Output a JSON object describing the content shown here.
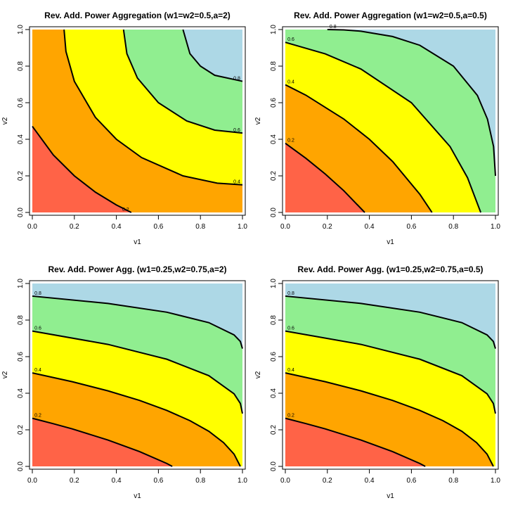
{
  "chart_data": [
    {
      "type": "contour",
      "title": "Rev. Add. Power Aggregation (w1=w2=0.5,a=2)",
      "x_label": "v1",
      "y_label": "v2",
      "xlim": [
        0,
        1
      ],
      "ylim": [
        0,
        1
      ],
      "xticks": [
        {
          "value": 0,
          "label": "0.0"
        },
        0.2,
        0.4,
        0.6,
        0.8,
        {
          "value": 1,
          "label": "1.0"
        }
      ],
      "yticks": [
        {
          "value": 0,
          "label": "0.0"
        },
        0.2,
        0.4,
        0.6,
        0.8,
        {
          "value": 1,
          "label": "1.0"
        }
      ],
      "colors": [
        "#ff6347",
        "#ffa500",
        "#ffff00",
        "#90ee90",
        "#add8e6"
      ],
      "contour_label_position": "end",
      "contours": [
        {
          "level": 0.2,
          "x": [
            0,
            0.1,
            0.2,
            0.3,
            0.4,
            0.471
          ],
          "y": [
            0.471,
            0.314,
            0.2,
            0.111,
            0.041,
            0
          ]
        },
        {
          "level": 0.4,
          "x": [
            0.151,
            0.16,
            0.2,
            0.3,
            0.4,
            0.52,
            0.717,
            0.88,
            1
          ],
          "y": [
            1,
            0.88,
            0.717,
            0.52,
            0.4,
            0.3,
            0.2,
            0.16,
            0.151
          ]
        },
        {
          "level": 0.6,
          "x": [
            0.434,
            0.45,
            0.5,
            0.6,
            0.735,
            0.868,
            1
          ],
          "y": [
            1,
            0.868,
            0.735,
            0.6,
            0.5,
            0.45,
            0.434
          ]
        },
        {
          "level": 0.8,
          "x": [
            0.717,
            0.75,
            0.8,
            0.868,
            1
          ],
          "y": [
            1,
            0.868,
            0.8,
            0.75,
            0.717
          ]
        }
      ]
    },
    {
      "type": "contour",
      "title": "Rev. Add. Power Aggregation (w1=w2=0.5,a=0.5)",
      "x_label": "v1",
      "y_label": "v2",
      "xlim": [
        0,
        1
      ],
      "ylim": [
        0,
        1
      ],
      "xticks": [
        {
          "value": 0,
          "label": "0.0"
        },
        0.2,
        0.4,
        0.6,
        0.8,
        {
          "value": 1,
          "label": "1.0"
        }
      ],
      "yticks": [
        {
          "value": 0,
          "label": "0.0"
        },
        0.2,
        0.4,
        0.6,
        0.8,
        {
          "value": 1,
          "label": "1.0"
        }
      ],
      "colors": [
        "#ff6347",
        "#ffa500",
        "#ffff00",
        "#90ee90",
        "#add8e6"
      ],
      "contour_label_position": "start",
      "contours": [
        {
          "level": 0.2,
          "x": [
            0,
            0.098,
            0.19,
            0.278,
            0.378
          ],
          "y": [
            0.378,
            0.296,
            0.21,
            0.119,
            0
          ]
        },
        {
          "level": 0.4,
          "x": [
            0,
            0.098,
            0.278,
            0.4,
            0.511,
            0.641,
            0.698
          ],
          "y": [
            0.698,
            0.641,
            0.511,
            0.4,
            0.278,
            0.098,
            0
          ]
        },
        {
          "level": 0.6,
          "x": [
            0,
            0.19,
            0.36,
            0.6,
            0.784,
            0.867,
            0.93
          ],
          "y": [
            0.93,
            0.867,
            0.784,
            0.6,
            0.36,
            0.19,
            0
          ]
        },
        {
          "level": 0.8,
          "x": [
            0.2,
            0.278,
            0.36,
            0.51,
            0.64,
            0.8,
            0.914,
            0.962,
            0.991,
            1
          ],
          "y": [
            1,
            0.998,
            0.991,
            0.962,
            0.914,
            0.8,
            0.64,
            0.51,
            0.36,
            0.2
          ]
        }
      ]
    },
    {
      "type": "contour",
      "title": "Rev. Add. Power Agg. (w1=0.25,w2=0.75,a=2)",
      "x_label": "v1",
      "y_label": "v2",
      "xlim": [
        0,
        1
      ],
      "ylim": [
        0,
        1
      ],
      "xticks": [
        {
          "value": 0,
          "label": "0.0"
        },
        0.2,
        0.4,
        0.6,
        0.8,
        {
          "value": 1,
          "label": "1.0"
        }
      ],
      "yticks": [
        {
          "value": 0,
          "label": "0.0"
        },
        0.2,
        0.4,
        0.6,
        0.8,
        {
          "value": 1,
          "label": "1.0"
        }
      ],
      "colors": [
        "#ff6347",
        "#ffa500",
        "#ffff00",
        "#90ee90",
        "#add8e6"
      ],
      "contour_label_position": "start",
      "contours": [
        {
          "level": 0.2,
          "x": [
            0,
            0.098,
            0.19,
            0.36,
            0.51,
            0.64,
            0.666
          ],
          "y": [
            0.263,
            0.234,
            0.205,
            0.144,
            0.081,
            0.016,
            0
          ]
        },
        {
          "level": 0.4,
          "x": [
            0,
            0.19,
            0.36,
            0.51,
            0.64,
            0.75,
            0.84,
            0.91,
            0.96,
            0.99
          ],
          "y": [
            0.511,
            0.463,
            0.413,
            0.361,
            0.306,
            0.25,
            0.192,
            0.13,
            0.067,
            0
          ]
        },
        {
          "level": 0.6,
          "x": [
            0,
            0.36,
            0.64,
            0.84,
            0.96,
            0.99,
            1
          ],
          "y": [
            0.74,
            0.667,
            0.586,
            0.496,
            0.397,
            0.344,
            0.289
          ]
        },
        {
          "level": 0.8,
          "x": [
            0,
            0.36,
            0.64,
            0.84,
            0.96,
            0.99,
            1
          ],
          "y": [
            0.931,
            0.891,
            0.843,
            0.786,
            0.719,
            0.683,
            0.644
          ]
        }
      ]
    },
    {
      "type": "contour",
      "title": "Rev. Add. Power Agg. (w1=0.25,w2=0.75,a=0.5)",
      "x_label": "v1",
      "y_label": "v2",
      "xlim": [
        0,
        1
      ],
      "ylim": [
        0,
        1
      ],
      "xticks": [
        {
          "value": 0,
          "label": "0.0"
        },
        0.2,
        0.4,
        0.6,
        0.8,
        {
          "value": 1,
          "label": "1.0"
        }
      ],
      "yticks": [
        {
          "value": 0,
          "label": "0.0"
        },
        0.2,
        0.4,
        0.6,
        0.8,
        {
          "value": 1,
          "label": "1.0"
        }
      ],
      "colors": [
        "#ff6347",
        "#ffa500",
        "#ffff00",
        "#90ee90",
        "#add8e6"
      ],
      "contour_label_position": "start",
      "contours": [
        {
          "level": 0.2,
          "x": [
            0,
            0.098,
            0.19,
            0.36,
            0.51,
            0.64,
            0.666
          ],
          "y": [
            0.263,
            0.234,
            0.205,
            0.144,
            0.081,
            0.016,
            0
          ]
        },
        {
          "level": 0.4,
          "x": [
            0,
            0.19,
            0.36,
            0.51,
            0.64,
            0.75,
            0.84,
            0.91,
            0.96,
            0.99
          ],
          "y": [
            0.511,
            0.463,
            0.413,
            0.361,
            0.306,
            0.25,
            0.192,
            0.13,
            0.067,
            0
          ]
        },
        {
          "level": 0.6,
          "x": [
            0,
            0.36,
            0.64,
            0.84,
            0.96,
            0.99,
            1
          ],
          "y": [
            0.74,
            0.667,
            0.586,
            0.496,
            0.397,
            0.344,
            0.289
          ]
        },
        {
          "level": 0.8,
          "x": [
            0,
            0.36,
            0.64,
            0.84,
            0.96,
            0.99,
            1
          ],
          "y": [
            0.931,
            0.891,
            0.843,
            0.786,
            0.719,
            0.683,
            0.644
          ]
        }
      ]
    }
  ]
}
